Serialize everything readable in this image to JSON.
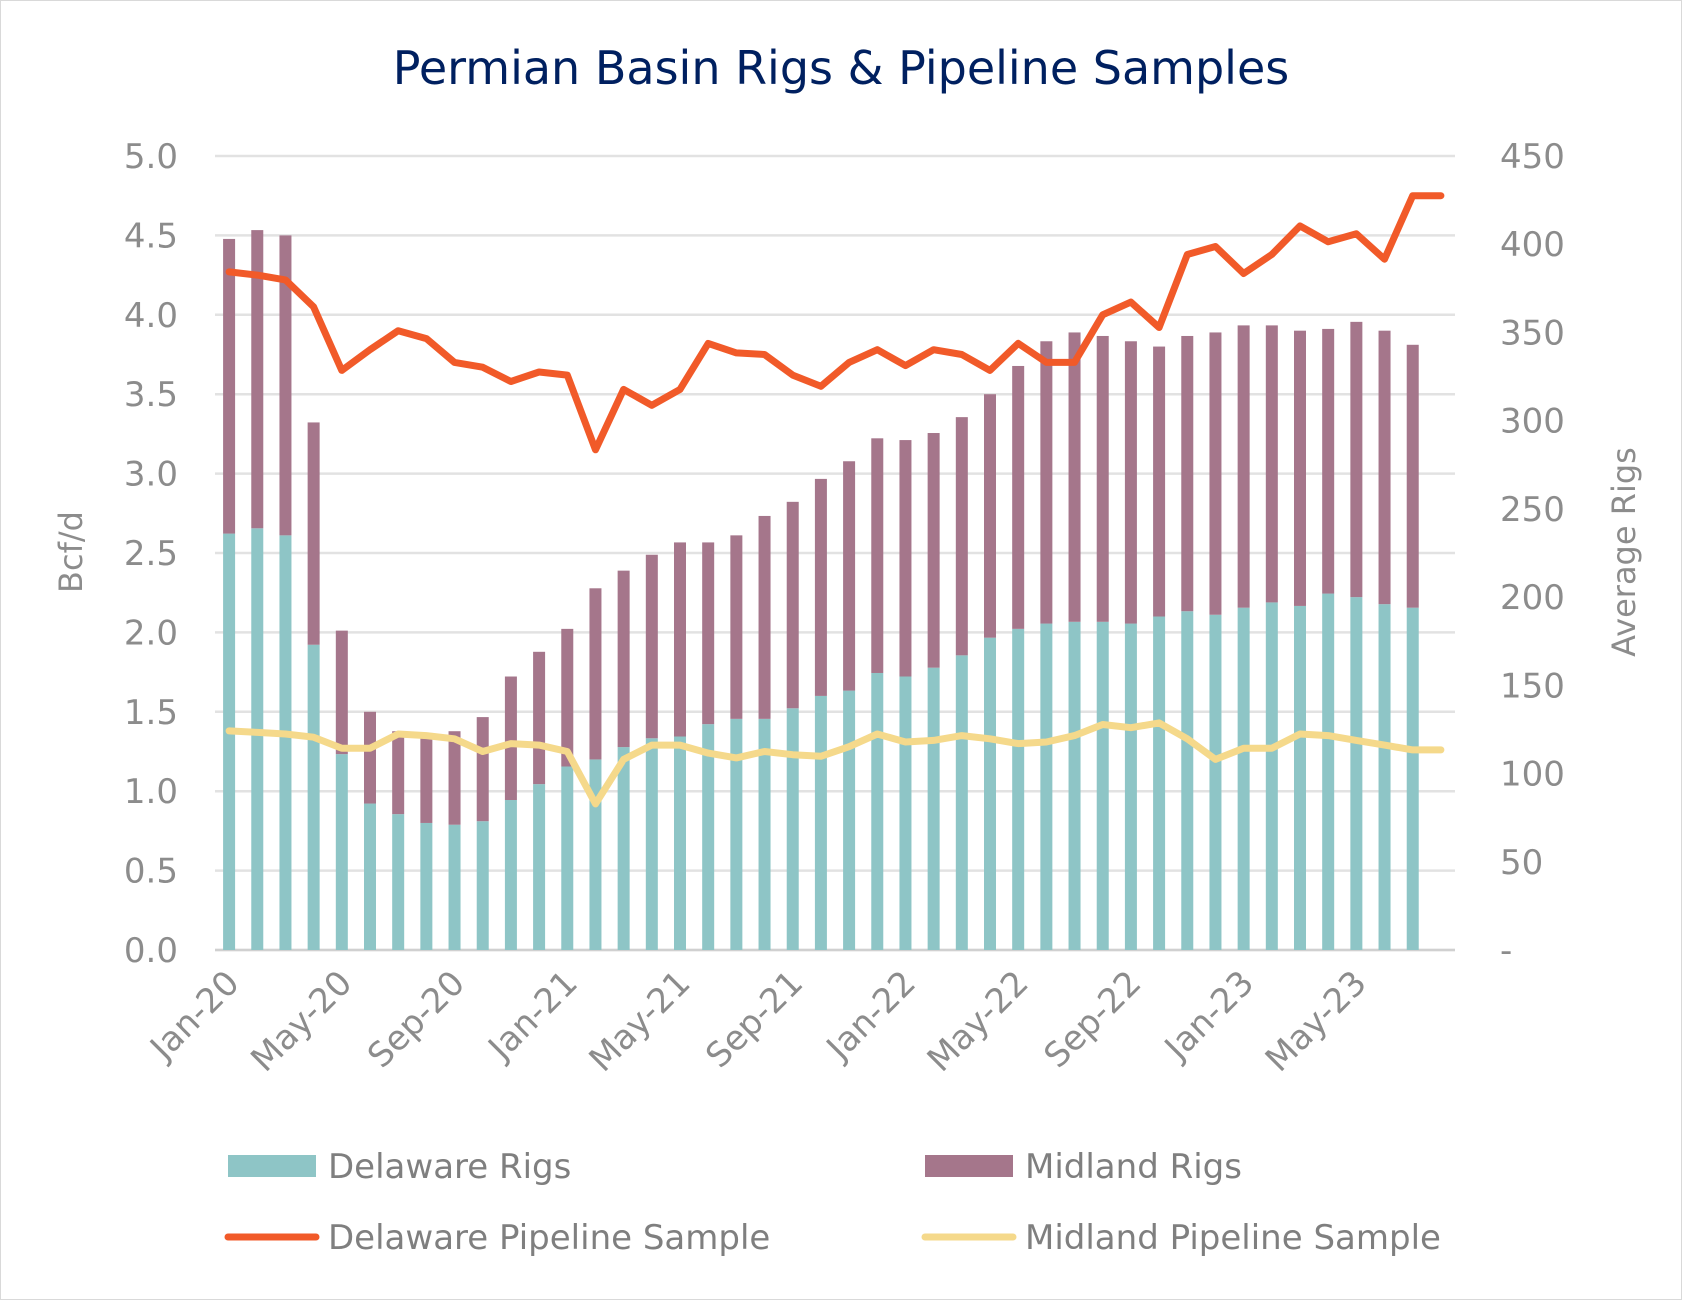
{
  "chart_data": {
    "type": "bar",
    "title": "Permian Basin Rigs & Pipeline Samples",
    "ylabel": "Bcf/d",
    "y2label": "Average Rigs",
    "ylim": [
      0,
      5
    ],
    "y2lim": [
      0,
      450
    ],
    "yticks": [
      "0.0",
      "0.5",
      "1.0",
      "1.5",
      "2.0",
      "2.5",
      "3.0",
      "3.5",
      "4.0",
      "4.5",
      "5.0"
    ],
    "y2ticks": [
      "-",
      "50",
      "100",
      "150",
      "200",
      "250",
      "300",
      "350",
      "400",
      "450"
    ],
    "xtick_labels": [
      "Jan-20",
      "May-20",
      "Sep-20",
      "Jan-21",
      "May-21",
      "Sep-21",
      "Jan-22",
      "May-22",
      "Sep-22",
      "Jan-23",
      "May-23"
    ],
    "categories": [
      "Jan-20",
      "Feb-20",
      "Mar-20",
      "Apr-20",
      "May-20",
      "Jun-20",
      "Jul-20",
      "Aug-20",
      "Sep-20",
      "Oct-20",
      "Nov-20",
      "Dec-20",
      "Jan-21",
      "Feb-21",
      "Mar-21",
      "Apr-21",
      "May-21",
      "Jun-21",
      "Jul-21",
      "Aug-21",
      "Sep-21",
      "Oct-21",
      "Nov-21",
      "Dec-21",
      "Jan-22",
      "Feb-22",
      "Mar-22",
      "Apr-22",
      "May-22",
      "Jun-22",
      "Jul-22",
      "Aug-22",
      "Sep-22",
      "Oct-22",
      "Nov-22",
      "Dec-22",
      "Jan-23",
      "Feb-23",
      "Mar-23",
      "Apr-23",
      "May-23",
      "Jun-23",
      "Jul-23",
      "Aug-23"
    ],
    "grid": true,
    "legend_position": "bottom",
    "series": [
      {
        "name": "Delaware Rigs",
        "type": "bar",
        "stack": "rigs",
        "axis": "right",
        "color": "#8ec5c6",
        "values": [
          236,
          239,
          235,
          173,
          111,
          83,
          77,
          72,
          71,
          73,
          85,
          94,
          104,
          108,
          115,
          120,
          121,
          128,
          131,
          131,
          137,
          144,
          147,
          157,
          155,
          160,
          167,
          177,
          182,
          185,
          186,
          186,
          185,
          189,
          192,
          190,
          194,
          197,
          195,
          202,
          200,
          196,
          194,
          0
        ]
      },
      {
        "name": "Midland Rigs",
        "type": "bar",
        "stack": "rigs",
        "axis": "right",
        "color": "#a5768b",
        "values": [
          167,
          169,
          170,
          126,
          70,
          52,
          47,
          51,
          53,
          59,
          70,
          75,
          78,
          97,
          100,
          104,
          110,
          103,
          104,
          115,
          117,
          123,
          130,
          133,
          134,
          133,
          135,
          138,
          149,
          160,
          164,
          162,
          160,
          153,
          156,
          160,
          160,
          157,
          156,
          150,
          156,
          155,
          149,
          0
        ]
      },
      {
        "name": "Delaware Pipeline Sample",
        "type": "line",
        "axis": "left",
        "color": "#f15a29",
        "values": [
          4.27,
          4.25,
          4.22,
          4.05,
          3.65,
          3.78,
          3.9,
          3.85,
          3.7,
          3.67,
          3.58,
          3.64,
          3.62,
          3.15,
          3.53,
          3.43,
          3.53,
          3.82,
          3.76,
          3.75,
          3.62,
          3.55,
          3.7,
          3.78,
          3.68,
          3.78,
          3.75,
          3.65,
          3.82,
          3.7,
          3.7,
          4.0,
          4.08,
          3.92,
          4.38,
          4.43,
          4.26,
          4.38,
          4.56,
          4.46,
          4.51,
          4.35,
          4.75,
          4.75
        ]
      },
      {
        "name": "Midland Pipeline Sample",
        "type": "line",
        "axis": "left",
        "color": "#f5d98b",
        "values": [
          1.38,
          1.37,
          1.36,
          1.34,
          1.27,
          1.27,
          1.36,
          1.35,
          1.33,
          1.25,
          1.3,
          1.29,
          1.25,
          0.92,
          1.2,
          1.29,
          1.29,
          1.24,
          1.21,
          1.25,
          1.23,
          1.22,
          1.28,
          1.36,
          1.31,
          1.32,
          1.35,
          1.33,
          1.3,
          1.31,
          1.35,
          1.42,
          1.4,
          1.43,
          1.33,
          1.2,
          1.27,
          1.27,
          1.36,
          1.35,
          1.32,
          1.29,
          1.26,
          1.26
        ]
      }
    ]
  }
}
